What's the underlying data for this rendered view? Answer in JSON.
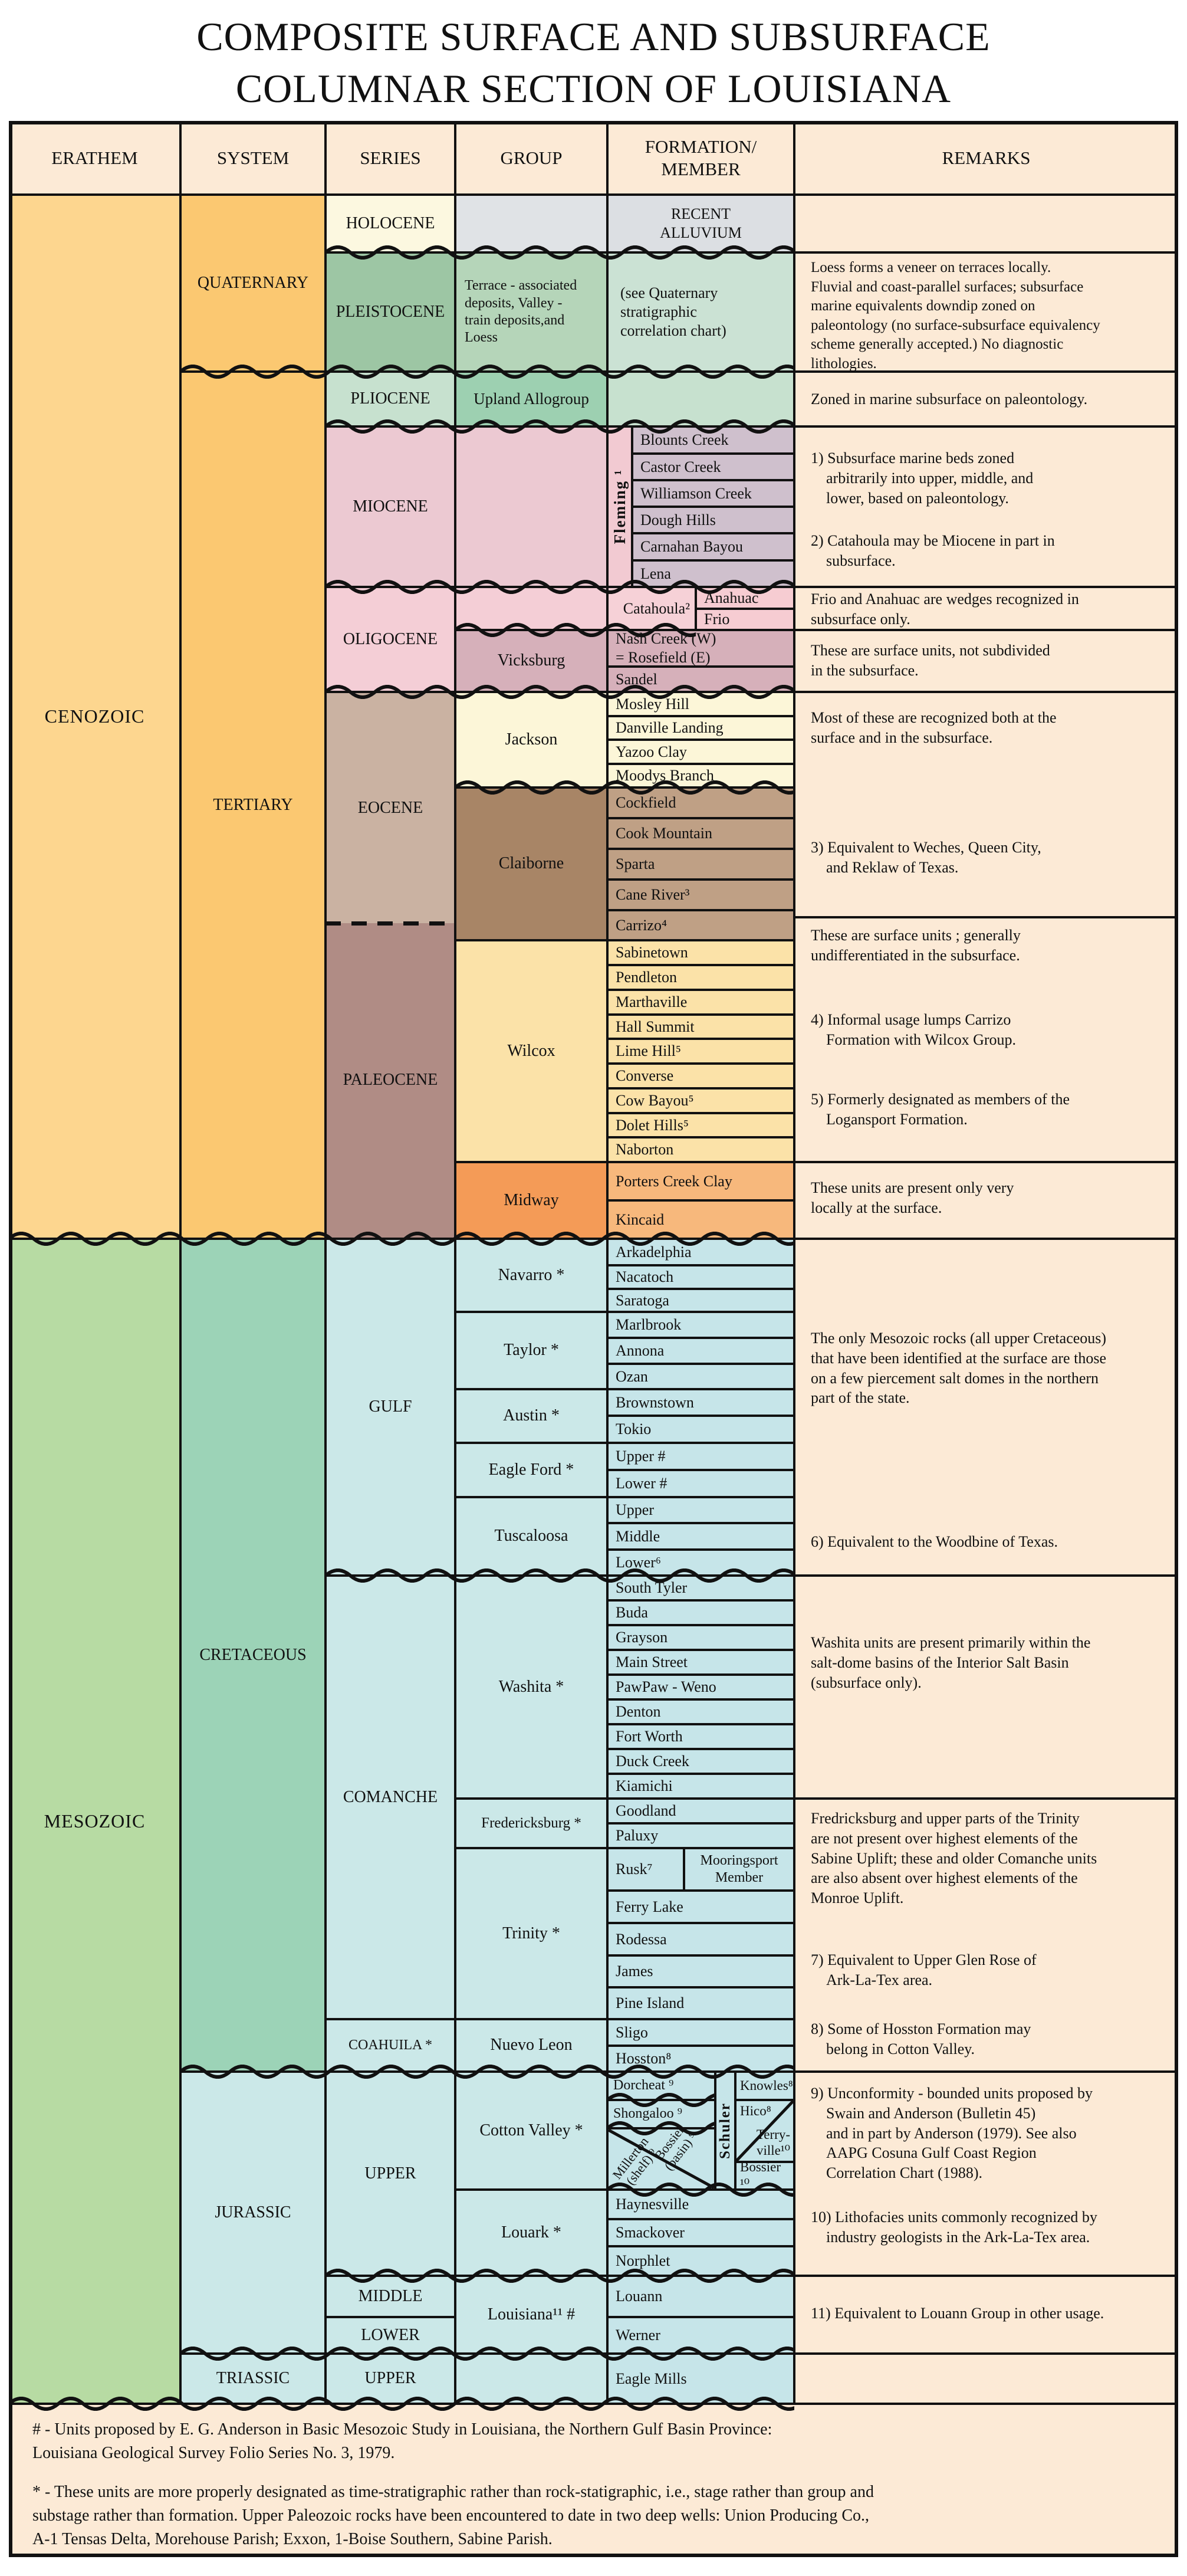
{
  "title": {
    "line1": "COMPOSITE SURFACE AND SUBSURFACE",
    "line2": "COLUMNAR SECTION OF LOUISIANA"
  },
  "palette": {
    "paper": "#fcead6",
    "cenozoic": "#fdd68f",
    "system_yellow": "#fbc871",
    "mesozoic_green": "#b7dba3",
    "cretaceous_teal": "#9cd3b7",
    "cyan": "#cbe8e8",
    "cyan_formation": "#c6e5e9",
    "line": "#111111"
  },
  "header": {
    "erathem": "ERATHEM",
    "system": "SYSTEM",
    "series": "SERIES",
    "group": "GROUP",
    "formation": "FORMATION/\nMEMBER",
    "remarks": "REMARKS"
  },
  "erathem": {
    "cenozoic": "CENOZOIC",
    "mesozoic": "MESOZOIC"
  },
  "system": {
    "quaternary": "QUATERNARY",
    "tertiary": "TERTIARY",
    "cretaceous": "CRETACEOUS",
    "jurassic": "JURASSIC",
    "triassic": "TRIASSIC"
  },
  "series": {
    "holocene": "HOLOCENE",
    "pleistocene": "PLEISTOCENE",
    "pliocene": "PLIOCENE",
    "miocene": "MIOCENE",
    "oligocene": "OLIGOCENE",
    "eocene": "EOCENE",
    "paleocene": "PALEOCENE",
    "gulf": "GULF",
    "comanche": "COMANCHE",
    "coahuila": "COAHUILA *",
    "jurassic_upper": "UPPER",
    "jurassic_middle": "MIDDLE",
    "jurassic_lower": "LOWER",
    "triassic_upper": "UPPER"
  },
  "groups": {
    "pleistocene_desc": "Terrace - associated\ndeposits, Valley -\ntrain deposits,and\nLoess",
    "upland_allogroup": "Upland Allogroup",
    "fleming": "Fleming ¹",
    "vicksburg": "Vicksburg",
    "jackson": "Jackson",
    "claiborne": "Claiborne",
    "wilcox": "Wilcox",
    "midway": "Midway",
    "navarro": "Navarro *",
    "taylor": "Taylor *",
    "austin": "Austin *",
    "eagle_ford": "Eagle Ford *",
    "tuscaloosa": "Tuscaloosa",
    "washita": "Washita *",
    "fredericksburg": "Fredericksburg *",
    "trinity": "Trinity *",
    "nuevo_leon": "Nuevo Leon",
    "cotton_valley": "Cotton Valley *",
    "schuler": "Schuler",
    "louark": "Louark *",
    "louisiana": "Louisiana¹¹ #"
  },
  "formations": {
    "recent_alluvium": "RECENT\nALLUVIUM",
    "quaternary_note": "(see Quaternary\nstratigraphic\ncorrelation chart)",
    "blounts_creek": "Blounts Creek",
    "castor_creek": "Castor Creek",
    "williamson_creek": "Williamson Creek",
    "dough_hills": "Dough Hills",
    "carnahan_bayou": "Carnahan Bayou",
    "lena": "Lena",
    "catahoula": "Catahoula²",
    "anahuac": "Anahuac",
    "frio": "Frio",
    "nash_creek": "Nash Creek (W)\n= Rosefield (E)",
    "sandel": "Sandel",
    "mosley_hill": "Mosley Hill",
    "danville_landing": "Danville Landing",
    "yazoo_clay": "Yazoo Clay",
    "moodys_branch": "Moodys Branch",
    "cockfield": "Cockfield",
    "cook_mountain": "Cook Mountain",
    "sparta": "Sparta",
    "cane_river": "Cane River³",
    "carrizo": "Carrizo⁴",
    "sabinetown": "Sabinetown",
    "pendleton": "Pendleton",
    "marthaville": "Marthaville",
    "hall_summit": "Hall Summit",
    "lime_hill": "Lime Hill⁵",
    "converse": "Converse",
    "cow_bayou": "Cow Bayou⁵",
    "dolet_hills": "Dolet Hills⁵",
    "naborton": "Naborton",
    "porters_creek_clay": "Porters Creek Clay",
    "kincaid": "Kincaid",
    "arkadelphia": "Arkadelphia",
    "nacatoch": "Nacatoch",
    "saratoga": "Saratoga",
    "marlbrook": "Marlbrook",
    "annona": "Annona",
    "ozan": "Ozan",
    "brownstown": "Brownstown",
    "tokio": "Tokio",
    "eagle_ford_upper": "Upper #",
    "eagle_ford_lower": "Lower #",
    "tuscaloosa_upper": "Upper",
    "tuscaloosa_middle": "Middle",
    "tuscaloosa_lower": "Lower⁶",
    "south_tyler": "South Tyler",
    "buda": "Buda",
    "grayson": "Grayson",
    "main_street": "Main Street",
    "pawpaw_weno": "PawPaw - Weno",
    "denton": "Denton",
    "fort_worth": "Fort Worth",
    "duck_creek": "Duck Creek",
    "kiamichi": "Kiamichi",
    "goodland": "Goodland",
    "paluxy": "Paluxy",
    "rusk": "Rusk⁷",
    "mooringsport": "Mooringsport\nMember",
    "ferry_lake": "Ferry Lake",
    "rodessa": "Rodessa",
    "james": "James",
    "pine_island": "Pine Island",
    "sligo": "Sligo",
    "hosston": "Hosston⁸",
    "dorcheat": "Dorcheat ⁹",
    "shongaloo": "Shongaloo ⁹",
    "millerton_shelf": "Millerton\n(shelf) ⁹",
    "bossier_basin": "Bossier\n(basin) ⁹",
    "knowles": "Knowles⁸",
    "hico": "Hico⁸",
    "terryville": "Terry-\nville¹⁰",
    "bossier": "Bossier ¹⁰",
    "haynesville": "Haynesville",
    "smackover": "Smackover",
    "norphlet": "Norphlet",
    "louann": "Louann",
    "werner": "Werner",
    "eagle_mills": "Eagle Mills"
  },
  "remarks": {
    "pleistocene": "Loess forms a veneer on terraces locally.\nFluvial and coast-parallel surfaces; subsurface\nmarine equivalents downdip zoned on\npaleontology (no surface-subsurface equivalency\nscheme generally accepted.) No diagnostic\nlithologies.",
    "pliocene": "Zoned in marine subsurface on paleontology.",
    "miocene_1": "1) Subsurface marine beds zoned\n    arbitrarily into upper, middle, and\n    lower, based on paleontology.",
    "miocene_2": "2) Catahoula may be Miocene in part in\n    subsurface.",
    "frio_anahuac": "Frio and Anahuac are wedges recognized in\nsubsurface only.",
    "vicksburg": "These are surface units, not subdivided\nin the subsurface.",
    "jackson": "Most of these are recognized both at the\nsurface and in the subsurface.",
    "claiborne_3": "3) Equivalent to Weches, Queen City,\n    and Reklaw of Texas.",
    "wilcox_a": "These are surface units ; generally\nundifferentiated in the subsurface.",
    "wilcox_4": "4) Informal usage lumps Carrizo\n    Formation with Wilcox Group.",
    "wilcox_5": "5) Formerly designated as members of the\n    Logansport Formation.",
    "midway": "These units are present only very\nlocally at the surface.",
    "gulf": "The only Mesozoic rocks (all upper Cretaceous)\nthat have been identified at the surface are those\non a few piercement salt domes in the northern\npart of the state.",
    "gulf_6": "6) Equivalent to the Woodbine of Texas.",
    "washita": "Washita units are present primarily within the\nsalt-dome basins of the Interior Salt Basin\n(subsurface only).",
    "trinity_a": "Fredricksburg and upper parts of the Trinity\nare not present over highest elements of the\nSabine Uplift; these and older Comanche units\nare also absent over highest elements of the\nMonroe Uplift.",
    "trinity_7": "7) Equivalent to Upper Glen Rose of\n    Ark-La-Tex area.",
    "trinity_8": "8) Some of Hosston Formation may\n    belong in Cotton Valley.",
    "cv_9": "9) Unconformity - bounded units proposed by\n    Swain and Anderson (Bulletin 45)\n    and in part by Anderson (1979). See also\n    AAPG Cosuna Gulf Coast Region\n    Correlation Chart (1988).",
    "cv_10": "10) Lithofacies units commonly recognized by\n    industry geologists in the Ark-La-Tex area.",
    "louann_11": "11) Equivalent to Louann Group in other usage."
  },
  "footnotes": {
    "hash": "# - Units proposed by E. G. Anderson in Basic Mesozoic Study in Louisiana, the Northern Gulf Basin Province:\nLouisiana Geological Survey Folio Series No. 3, 1979.",
    "star": "* - These units are more properly designated as time-stratigraphic rather than rock-statigraphic, i.e., stage rather than group and\nsubstage rather than formation. Upper Paleozoic rocks have been encountered to date in two deep wells: Union Producing Co.,\nA-1 Tensas Delta, Morehouse Parish; Exxon, 1-Boise Southern, Sabine Parish."
  }
}
